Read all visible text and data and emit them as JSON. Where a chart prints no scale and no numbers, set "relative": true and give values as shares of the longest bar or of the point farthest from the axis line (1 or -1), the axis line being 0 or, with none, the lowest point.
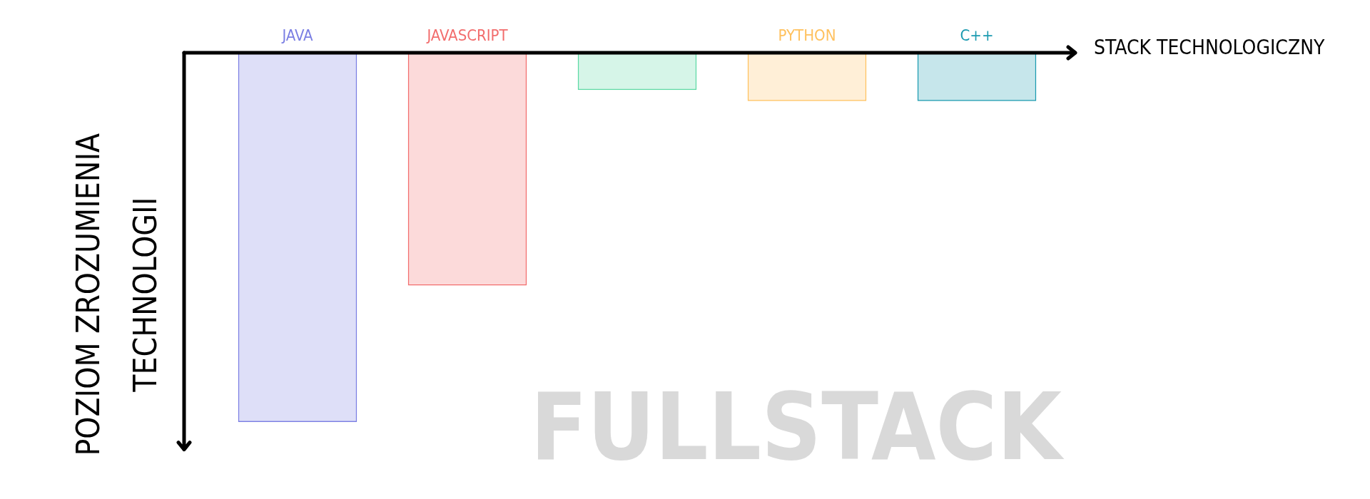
{
  "chart_data": {
    "type": "bar",
    "title": "FULLSTACK",
    "xlabel": "STACK TECHNOLOGICZNY",
    "ylabel": "POZIOM ZROZUMIENIA\nTECHNOLOGII",
    "categories": [
      "JAVA",
      "JAVASCRIPT",
      null,
      "PYTHON",
      "C++"
    ],
    "values": [
      -1,
      -0.63,
      -0.1,
      -0.13,
      -0.13
    ],
    "colors": [
      "#7b7fe3",
      "#f26d6d",
      "#5cd9a4",
      "#ffc15e",
      "#1a9ab0"
    ],
    "relative": true,
    "grid": false,
    "legend": false
  }
}
